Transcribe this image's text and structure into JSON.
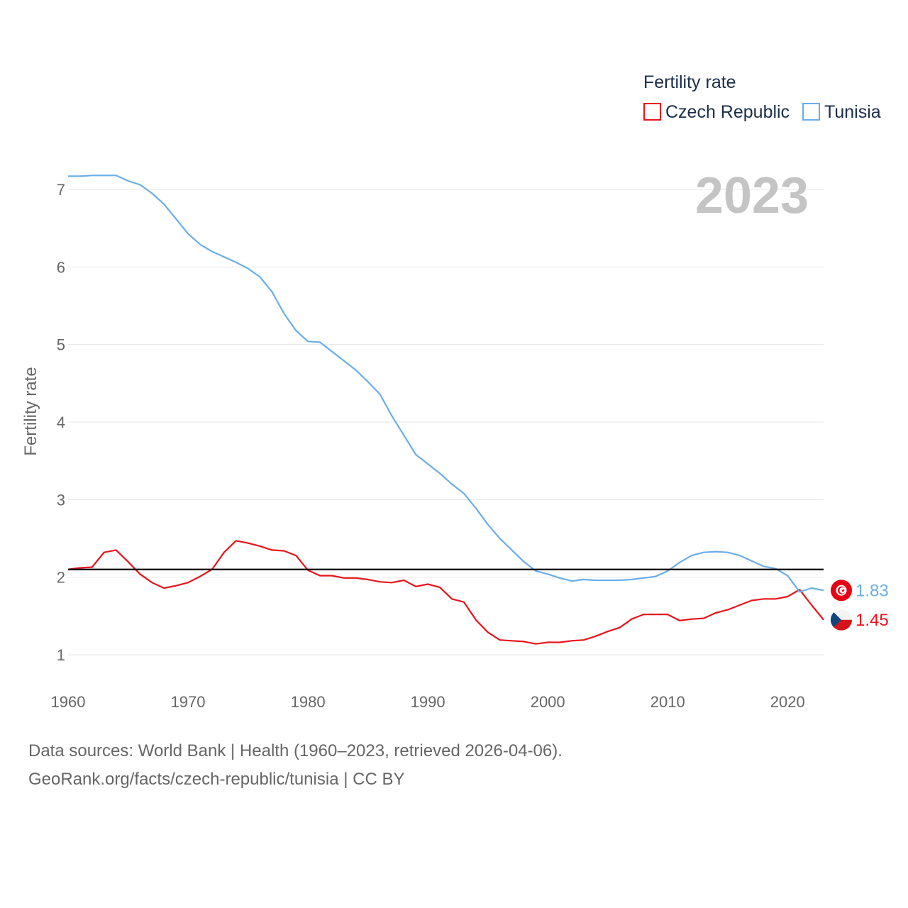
{
  "chart_data": {
    "type": "line",
    "ylabel": "Fertility rate",
    "xlabel": "",
    "xlim": [
      1960,
      2023
    ],
    "ylim": [
      0.6,
      7.5
    ],
    "x_ticks": [
      1960,
      1970,
      1980,
      1990,
      2000,
      2010,
      2020
    ],
    "y_ticks": [
      1,
      2,
      3,
      4,
      5,
      6,
      7
    ],
    "year_label": "2023",
    "legend": {
      "title": "Fertility rate",
      "placement": "top-right"
    },
    "reference_line": {
      "value": 2.1,
      "color": "#000000"
    },
    "x": [
      1960,
      1961,
      1962,
      1963,
      1964,
      1965,
      1966,
      1967,
      1968,
      1969,
      1970,
      1971,
      1972,
      1973,
      1974,
      1975,
      1976,
      1977,
      1978,
      1979,
      1980,
      1981,
      1982,
      1983,
      1984,
      1985,
      1986,
      1987,
      1988,
      1989,
      1990,
      1991,
      1992,
      1993,
      1994,
      1995,
      1996,
      1997,
      1998,
      1999,
      2000,
      2001,
      2002,
      2003,
      2004,
      2005,
      2006,
      2007,
      2008,
      2009,
      2010,
      2011,
      2012,
      2013,
      2014,
      2015,
      2016,
      2017,
      2018,
      2019,
      2020,
      2021,
      2022,
      2023
    ],
    "series": [
      {
        "name": "Czech Republic",
        "color": "#e8141c",
        "flag": "czech-flag",
        "end_label": "1.45",
        "values": [
          2.1,
          2.12,
          2.13,
          2.32,
          2.35,
          2.2,
          2.04,
          1.93,
          1.86,
          1.89,
          1.93,
          2.01,
          2.1,
          2.32,
          2.47,
          2.44,
          2.4,
          2.35,
          2.34,
          2.28,
          2.09,
          2.02,
          2.02,
          1.99,
          1.99,
          1.97,
          1.94,
          1.93,
          1.96,
          1.88,
          1.91,
          1.87,
          1.72,
          1.68,
          1.45,
          1.29,
          1.19,
          1.18,
          1.17,
          1.14,
          1.16,
          1.16,
          1.18,
          1.19,
          1.24,
          1.3,
          1.35,
          1.46,
          1.52,
          1.52,
          1.52,
          1.44,
          1.46,
          1.47,
          1.54,
          1.58,
          1.64,
          1.7,
          1.72,
          1.72,
          1.75,
          1.84,
          1.64,
          1.45
        ]
      },
      {
        "name": "Tunisia",
        "color": "#6aaee8",
        "flag": "tunisia-flag",
        "end_label": "1.83",
        "values": [
          7.17,
          7.17,
          7.18,
          7.18,
          7.18,
          7.11,
          7.06,
          6.95,
          6.81,
          6.62,
          6.43,
          6.29,
          6.2,
          6.13,
          6.06,
          5.98,
          5.87,
          5.68,
          5.4,
          5.18,
          5.04,
          5.03,
          4.91,
          4.79,
          4.67,
          4.52,
          4.36,
          4.08,
          3.83,
          3.58,
          3.46,
          3.34,
          3.2,
          3.08,
          2.89,
          2.68,
          2.5,
          2.35,
          2.2,
          2.08,
          2.04,
          1.99,
          1.95,
          1.97,
          1.96,
          1.96,
          1.96,
          1.97,
          1.99,
          2.01,
          2.08,
          2.19,
          2.28,
          2.32,
          2.33,
          2.32,
          2.28,
          2.21,
          2.14,
          2.11,
          2.02,
          1.81,
          1.86,
          1.83
        ]
      }
    ]
  },
  "footer": {
    "line1": "Data sources: World Bank | Health (1960–2023, retrieved 2026-04-06).",
    "line2": "GeoRank.org/facts/czech-republic/tunisia | CC BY"
  }
}
